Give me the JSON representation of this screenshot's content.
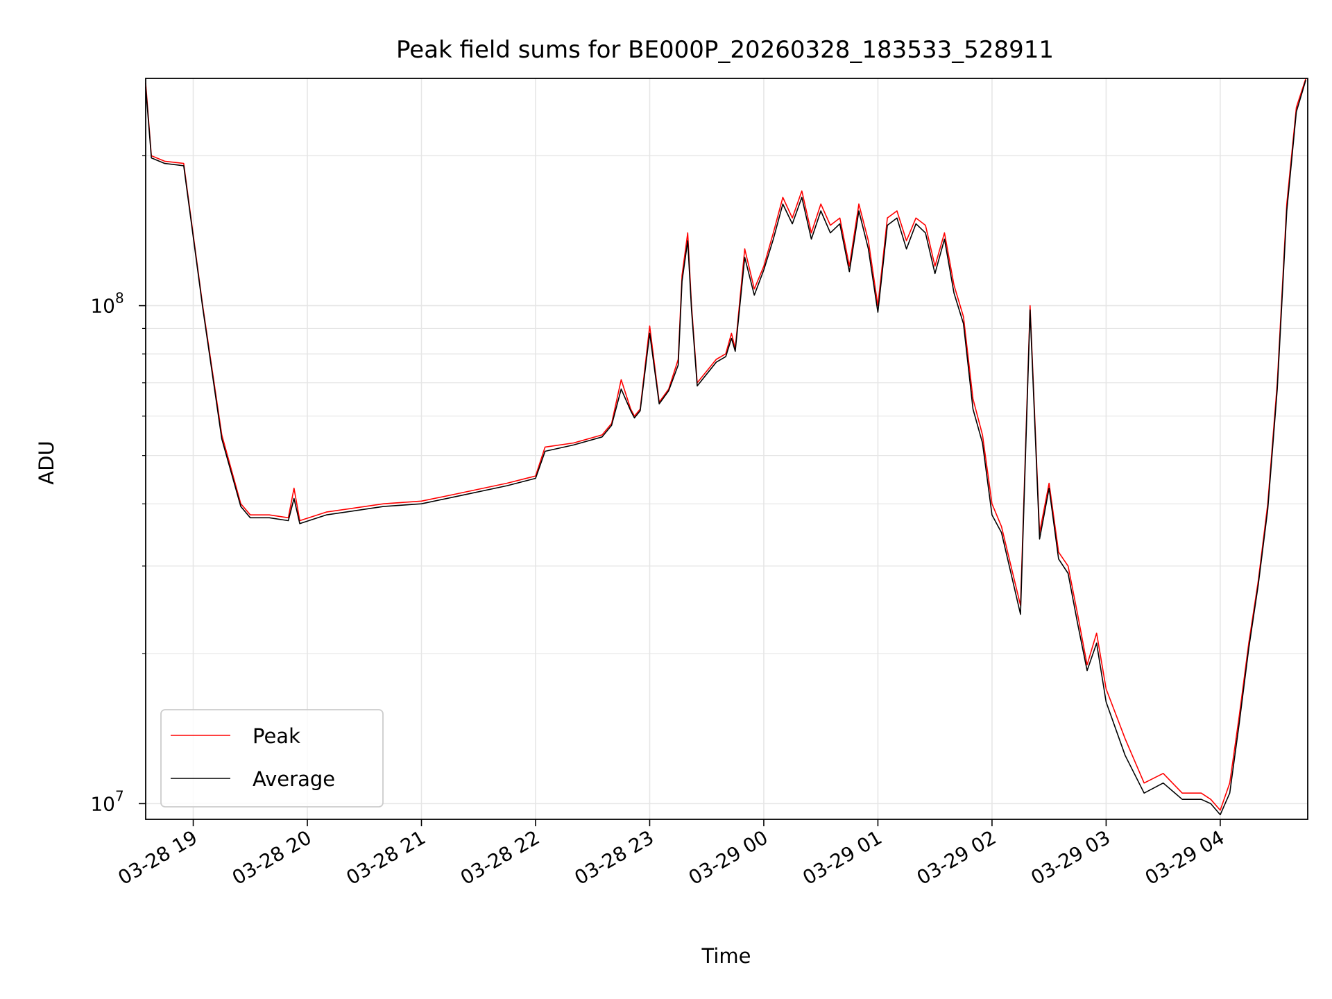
{
  "chart_data": {
    "type": "line",
    "title": "Peak field sums for BE000P_20260328_183533_528911",
    "xlabel": "Time",
    "ylabel": "ADU",
    "yscale": "log",
    "ylim": [
      9300000,
      286000000
    ],
    "xlim": [
      "03-28 18:35",
      "03-29 04:46"
    ],
    "grid": true,
    "legend_position": "lower-left",
    "x_ticks": [
      "03-28 19",
      "03-28 20",
      "03-28 21",
      "03-28 22",
      "03-28 23",
      "03-29 00",
      "03-29 01",
      "03-29 02",
      "03-29 03",
      "03-29 04"
    ],
    "y_ticks": [
      {
        "label": "10",
        "exponent": "7",
        "value": 10000000
      },
      {
        "label": "10",
        "exponent": "8",
        "value": 100000000
      }
    ],
    "series": [
      {
        "name": "Peak",
        "color": "#ff0000"
      },
      {
        "name": "Average",
        "color": "#000000"
      }
    ],
    "x": [
      "03-28 18:35",
      "03-28 18:38",
      "03-28 18:45",
      "03-28 18:55",
      "03-28 19:05",
      "03-28 19:15",
      "03-28 19:25",
      "03-28 19:30",
      "03-28 19:40",
      "03-28 19:50",
      "03-28 19:53",
      "03-28 19:56",
      "03-28 20:10",
      "03-28 20:40",
      "03-28 21:00",
      "03-28 21:20",
      "03-28 21:45",
      "03-28 22:00",
      "03-28 22:05",
      "03-28 22:20",
      "03-28 22:35",
      "03-28 22:40",
      "03-28 22:45",
      "03-28 22:50",
      "03-28 22:52",
      "03-28 22:55",
      "03-28 23:00",
      "03-28 23:05",
      "03-28 23:10",
      "03-28 23:15",
      "03-28 23:17",
      "03-28 23:20",
      "03-28 23:22",
      "03-28 23:25",
      "03-28 23:35",
      "03-28 23:40",
      "03-28 23:43",
      "03-28 23:45",
      "03-28 23:50",
      "03-28 23:55",
      "03-29 00:00",
      "03-29 00:05",
      "03-29 00:10",
      "03-29 00:15",
      "03-29 00:20",
      "03-29 00:25",
      "03-29 00:30",
      "03-29 00:35",
      "03-29 00:40",
      "03-29 00:45",
      "03-29 00:50",
      "03-29 00:55",
      "03-29 01:00",
      "03-29 01:05",
      "03-29 01:10",
      "03-29 01:15",
      "03-29 01:20",
      "03-29 01:25",
      "03-29 01:30",
      "03-29 01:35",
      "03-29 01:40",
      "03-29 01:45",
      "03-29 01:50",
      "03-29 01:55",
      "03-29 02:00",
      "03-29 02:05",
      "03-29 02:10",
      "03-29 02:15",
      "03-29 02:20",
      "03-29 02:25",
      "03-29 02:30",
      "03-29 02:35",
      "03-29 02:40",
      "03-29 02:45",
      "03-29 02:50",
      "03-29 02:55",
      "03-29 03:00",
      "03-29 03:10",
      "03-29 03:20",
      "03-29 03:30",
      "03-29 03:40",
      "03-29 03:50",
      "03-29 03:55",
      "03-29 04:00",
      "03-29 04:05",
      "03-29 04:10",
      "03-29 04:15",
      "03-29 04:20",
      "03-29 04:25",
      "03-29 04:30",
      "03-29 04:35",
      "03-29 04:40",
      "03-29 04:45"
    ],
    "peak": [
      280000000,
      200000000,
      195000000,
      193000000,
      100000000,
      55000000,
      40000000,
      38000000,
      38000000,
      37500000,
      43000000,
      37000000,
      38500000,
      40000000,
      40500000,
      42000000,
      44000000,
      45500000,
      52000000,
      53000000,
      55000000,
      58000000,
      71000000,
      62000000,
      60000000,
      62000000,
      91000000,
      64000000,
      68000000,
      78000000,
      115000000,
      140000000,
      100000000,
      70000000,
      78000000,
      80000000,
      88000000,
      82000000,
      130000000,
      108000000,
      120000000,
      140000000,
      165000000,
      150000000,
      170000000,
      140000000,
      160000000,
      145000000,
      150000000,
      120000000,
      160000000,
      135000000,
      100000000,
      150000000,
      155000000,
      135000000,
      150000000,
      145000000,
      120000000,
      140000000,
      110000000,
      95000000,
      65000000,
      55000000,
      40000000,
      36000000,
      30000000,
      25000000,
      100000000,
      35000000,
      44000000,
      32000000,
      30000000,
      24000000,
      19000000,
      22000000,
      17000000,
      13500000,
      11000000,
      11500000,
      10500000,
      10500000,
      10200000,
      9700000,
      11000000,
      15000000,
      21000000,
      28000000,
      40000000,
      70000000,
      160000000,
      250000000,
      286000000
    ],
    "average": [
      275000000,
      198000000,
      193000000,
      191000000,
      99000000,
      54000000,
      39500000,
      37500000,
      37500000,
      37000000,
      41000000,
      36500000,
      38000000,
      39500000,
      40000000,
      41500000,
      43500000,
      45000000,
      51000000,
      52500000,
      54500000,
      57500000,
      68000000,
      61500000,
      59500000,
      61500000,
      88000000,
      63500000,
      67500000,
      76000000,
      112000000,
      135000000,
      98000000,
      69000000,
      77000000,
      79000000,
      86000000,
      81000000,
      125000000,
      105000000,
      118000000,
      136000000,
      160000000,
      146000000,
      165000000,
      136000000,
      155000000,
      140000000,
      146000000,
      117000000,
      155000000,
      130000000,
      97000000,
      145000000,
      150000000,
      130000000,
      146000000,
      140000000,
      116000000,
      136000000,
      106000000,
      92000000,
      62000000,
      53000000,
      38000000,
      35000000,
      29000000,
      24000000,
      98000000,
      34000000,
      43000000,
      31000000,
      29000000,
      23000000,
      18500000,
      21000000,
      16000000,
      12500000,
      10500000,
      11000000,
      10200000,
      10200000,
      10000000,
      9500000,
      10500000,
      14500000,
      20500000,
      27500000,
      39000000,
      68000000,
      155000000,
      245000000,
      284000000
    ]
  }
}
